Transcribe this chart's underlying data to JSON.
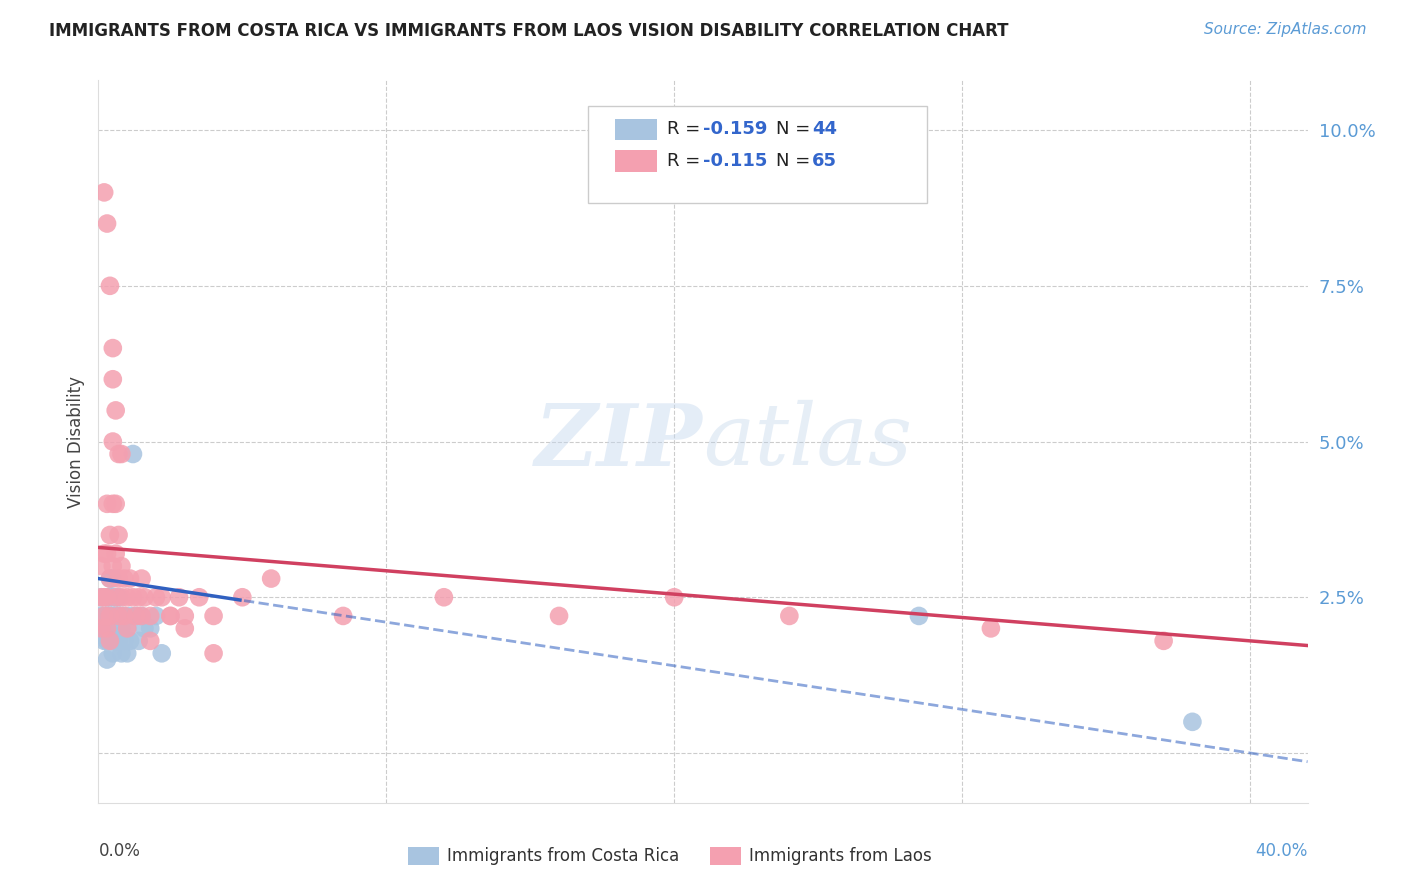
{
  "title": "IMMIGRANTS FROM COSTA RICA VS IMMIGRANTS FROM LAOS VISION DISABILITY CORRELATION CHART",
  "source": "Source: ZipAtlas.com",
  "ylabel": "Vision Disability",
  "yticks": [
    0.0,
    0.025,
    0.05,
    0.075,
    0.1
  ],
  "ytick_labels": [
    "",
    "2.5%",
    "5.0%",
    "7.5%",
    "10.0%"
  ],
  "xlim": [
    0.0,
    0.42
  ],
  "ylim": [
    -0.008,
    0.108
  ],
  "costa_rica_color": "#a8c4e0",
  "laos_color": "#f4a0b0",
  "costa_rica_line_color": "#3060c0",
  "laos_line_color": "#d04060",
  "legend_R_costa_rica": "-0.159",
  "legend_N_costa_rica": "44",
  "legend_R_laos": "-0.115",
  "legend_N_laos": "65",
  "watermark_zip": "ZIP",
  "watermark_atlas": "atlas",
  "costa_rica_x": [
    0.001,
    0.001,
    0.001,
    0.002,
    0.002,
    0.002,
    0.003,
    0.003,
    0.003,
    0.003,
    0.004,
    0.004,
    0.004,
    0.004,
    0.005,
    0.005,
    0.005,
    0.005,
    0.005,
    0.006,
    0.006,
    0.006,
    0.007,
    0.007,
    0.007,
    0.008,
    0.008,
    0.008,
    0.009,
    0.009,
    0.01,
    0.01,
    0.011,
    0.011,
    0.012,
    0.013,
    0.014,
    0.015,
    0.016,
    0.018,
    0.02,
    0.022,
    0.285,
    0.38
  ],
  "costa_rica_y": [
    0.025,
    0.022,
    0.02,
    0.022,
    0.02,
    0.018,
    0.025,
    0.022,
    0.018,
    0.015,
    0.028,
    0.025,
    0.022,
    0.018,
    0.028,
    0.025,
    0.022,
    0.02,
    0.016,
    0.025,
    0.022,
    0.018,
    0.025,
    0.022,
    0.018,
    0.022,
    0.02,
    0.016,
    0.022,
    0.018,
    0.02,
    0.016,
    0.022,
    0.018,
    0.048,
    0.022,
    0.018,
    0.022,
    0.02,
    0.02,
    0.022,
    0.016,
    0.022,
    0.005
  ],
  "laos_x": [
    0.001,
    0.001,
    0.001,
    0.002,
    0.002,
    0.002,
    0.003,
    0.003,
    0.003,
    0.003,
    0.004,
    0.004,
    0.004,
    0.004,
    0.005,
    0.005,
    0.005,
    0.005,
    0.006,
    0.006,
    0.006,
    0.007,
    0.007,
    0.007,
    0.008,
    0.008,
    0.009,
    0.009,
    0.01,
    0.01,
    0.011,
    0.012,
    0.013,
    0.014,
    0.015,
    0.016,
    0.018,
    0.02,
    0.022,
    0.025,
    0.028,
    0.03,
    0.035,
    0.04,
    0.06,
    0.085,
    0.12,
    0.16,
    0.2,
    0.24,
    0.002,
    0.003,
    0.004,
    0.005,
    0.006,
    0.007,
    0.008,
    0.015,
    0.018,
    0.025,
    0.03,
    0.04,
    0.05,
    0.31,
    0.37
  ],
  "laos_y": [
    0.03,
    0.025,
    0.02,
    0.032,
    0.025,
    0.022,
    0.04,
    0.032,
    0.025,
    0.02,
    0.035,
    0.028,
    0.022,
    0.018,
    0.06,
    0.05,
    0.04,
    0.03,
    0.04,
    0.032,
    0.025,
    0.035,
    0.028,
    0.022,
    0.03,
    0.025,
    0.028,
    0.022,
    0.025,
    0.02,
    0.028,
    0.025,
    0.022,
    0.025,
    0.022,
    0.025,
    0.022,
    0.025,
    0.025,
    0.022,
    0.025,
    0.022,
    0.025,
    0.022,
    0.028,
    0.022,
    0.025,
    0.022,
    0.025,
    0.022,
    0.09,
    0.085,
    0.075,
    0.065,
    0.055,
    0.048,
    0.048,
    0.028,
    0.018,
    0.022,
    0.02,
    0.016,
    0.025,
    0.02,
    0.018
  ]
}
